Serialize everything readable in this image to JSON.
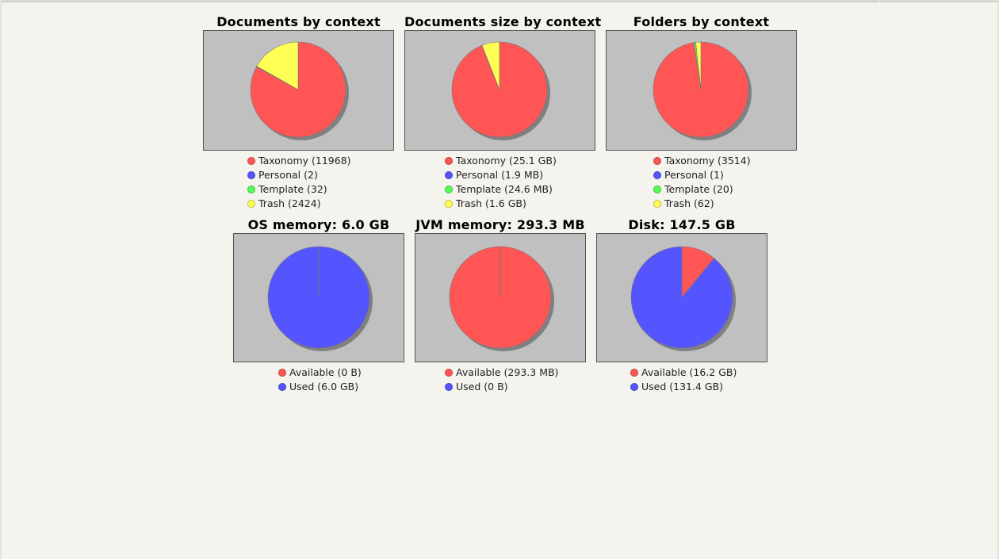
{
  "colors": {
    "taxonomy": "#ff5555",
    "personal": "#5555ff",
    "template": "#55ff55",
    "trash": "#ffff55",
    "available": "#ff5555",
    "used": "#5555ff"
  },
  "chart_data": [
    {
      "id": "documents",
      "type": "pie",
      "title": "Documents by context",
      "categories": [
        "Taxonomy",
        "Personal",
        "Template",
        "Trash"
      ],
      "values": [
        11968,
        2,
        32,
        2424
      ],
      "legend": [
        "Taxonomy (11968)",
        "Personal (2)",
        "Template (32)",
        "Trash (2424)"
      ]
    },
    {
      "id": "documents-size",
      "type": "pie",
      "title": "Documents size by context",
      "categories": [
        "Taxonomy",
        "Personal",
        "Template",
        "Trash"
      ],
      "values": [
        25.1,
        0.0019,
        0.024,
        1.6
      ],
      "unit": "GB",
      "legend": [
        "Taxonomy (25.1 GB)",
        "Personal (1.9 MB)",
        "Template (24.6 MB)",
        "Trash (1.6 GB)"
      ]
    },
    {
      "id": "folders",
      "type": "pie",
      "title": "Folders by context",
      "categories": [
        "Taxonomy",
        "Personal",
        "Template",
        "Trash"
      ],
      "values": [
        3514,
        1,
        20,
        62
      ],
      "legend": [
        "Taxonomy (3514)",
        "Personal (1)",
        "Template (20)",
        "Trash (62)"
      ]
    },
    {
      "id": "os-memory",
      "type": "pie",
      "title": "OS memory: 6.0 GB",
      "categories": [
        "Available",
        "Used"
      ],
      "values": [
        0,
        6.0
      ],
      "unit": "GB",
      "legend": [
        "Available (0 B)",
        "Used (6.0 GB)"
      ]
    },
    {
      "id": "jvm-memory",
      "type": "pie",
      "title": "JVM memory: 293.3 MB",
      "categories": [
        "Available",
        "Used"
      ],
      "values": [
        293.3,
        0
      ],
      "unit": "MB",
      "legend": [
        "Available (293.3 MB)",
        "Used (0 B)"
      ]
    },
    {
      "id": "disk",
      "type": "pie",
      "title": "Disk: 147.5 GB",
      "categories": [
        "Available",
        "Used"
      ],
      "values": [
        16.2,
        131.4
      ],
      "unit": "GB",
      "legend": [
        "Available (16.2 GB)",
        "Used (131.4 GB)"
      ]
    }
  ]
}
